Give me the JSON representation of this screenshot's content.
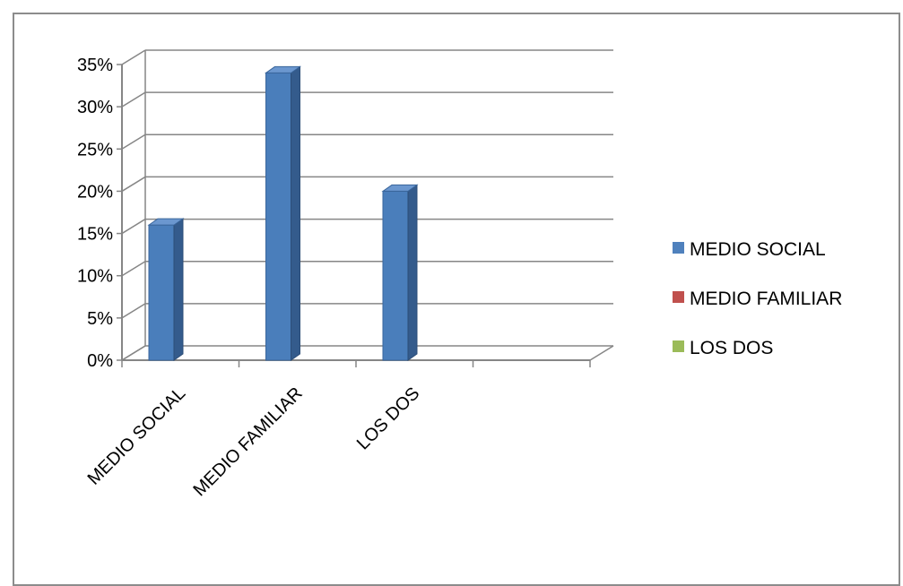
{
  "chart_data": {
    "type": "bar",
    "title": "",
    "xlabel": "",
    "ylabel": "",
    "categories": [
      "MEDIO SOCIAL",
      "MEDIO FAMILIAR",
      "LOS DOS"
    ],
    "series": [
      {
        "values": [
          16,
          34,
          20
        ],
        "color": "#4a7ebb"
      }
    ],
    "ylim": [
      0,
      35
    ],
    "y_ticks": [
      "0%",
      "5%",
      "10%",
      "15%",
      "20%",
      "25%",
      "30%",
      "35%"
    ],
    "grid": true,
    "three_d": true,
    "legend": {
      "placement": "right",
      "items": [
        {
          "label": "MEDIO SOCIAL",
          "color": "#4f81bd"
        },
        {
          "label": "MEDIO FAMILIAR",
          "color": "#c0504d"
        },
        {
          "label": "LOS DOS",
          "color": "#9bbb59"
        }
      ]
    }
  }
}
